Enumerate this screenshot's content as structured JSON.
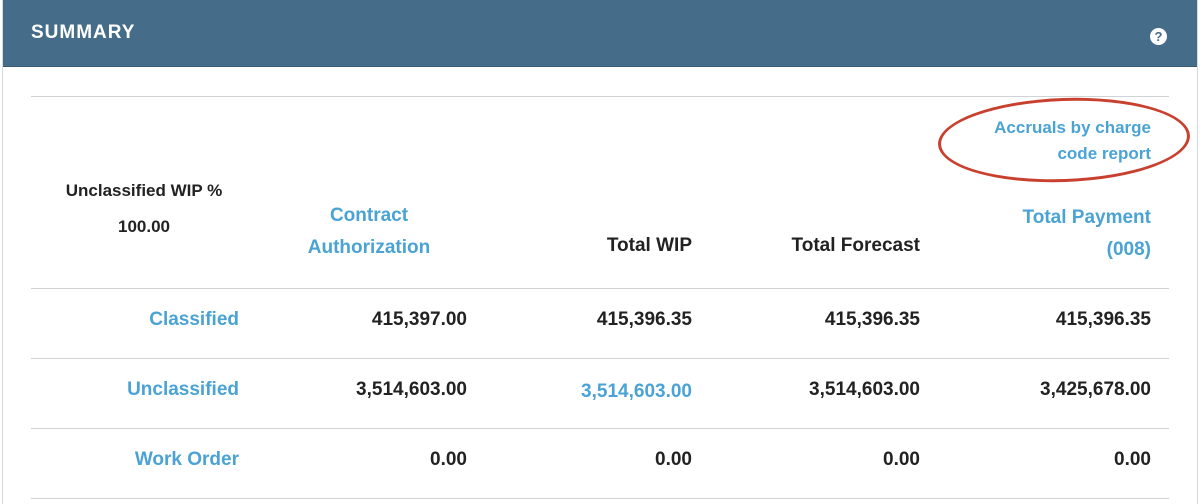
{
  "header": {
    "title": "SUMMARY",
    "help_icon": "question-circle-icon"
  },
  "summary": {
    "unclassified_wip_label": "Unclassified WIP %",
    "unclassified_wip_value": "100.00",
    "report_link": {
      "line1": "Accruals by charge",
      "line2": "code report"
    }
  },
  "columns": {
    "contract_authorization": {
      "line1": "Contract",
      "line2": "Authorization"
    },
    "total_wip": "Total WIP",
    "total_forecast": "Total Forecast",
    "total_payment": {
      "line1": "Total Payment",
      "line2": "(008)"
    }
  },
  "rows": [
    {
      "label": "Classified",
      "contract": "415,397.00",
      "wip": "415,396.35",
      "forecast": "415,396.35",
      "payment": "415,396.35"
    },
    {
      "label": "Unclassified",
      "contract": "3,514,603.00",
      "wip": "3,514,603.00",
      "forecast": "3,514,603.00",
      "payment": "3,425,678.00"
    },
    {
      "label": "Work Order",
      "contract": "0.00",
      "wip": "0.00",
      "forecast": "0.00",
      "payment": "0.00"
    }
  ],
  "colors": {
    "header_bg": "#456d89",
    "link": "#4aa3d4",
    "annotation": "#c9412e"
  }
}
